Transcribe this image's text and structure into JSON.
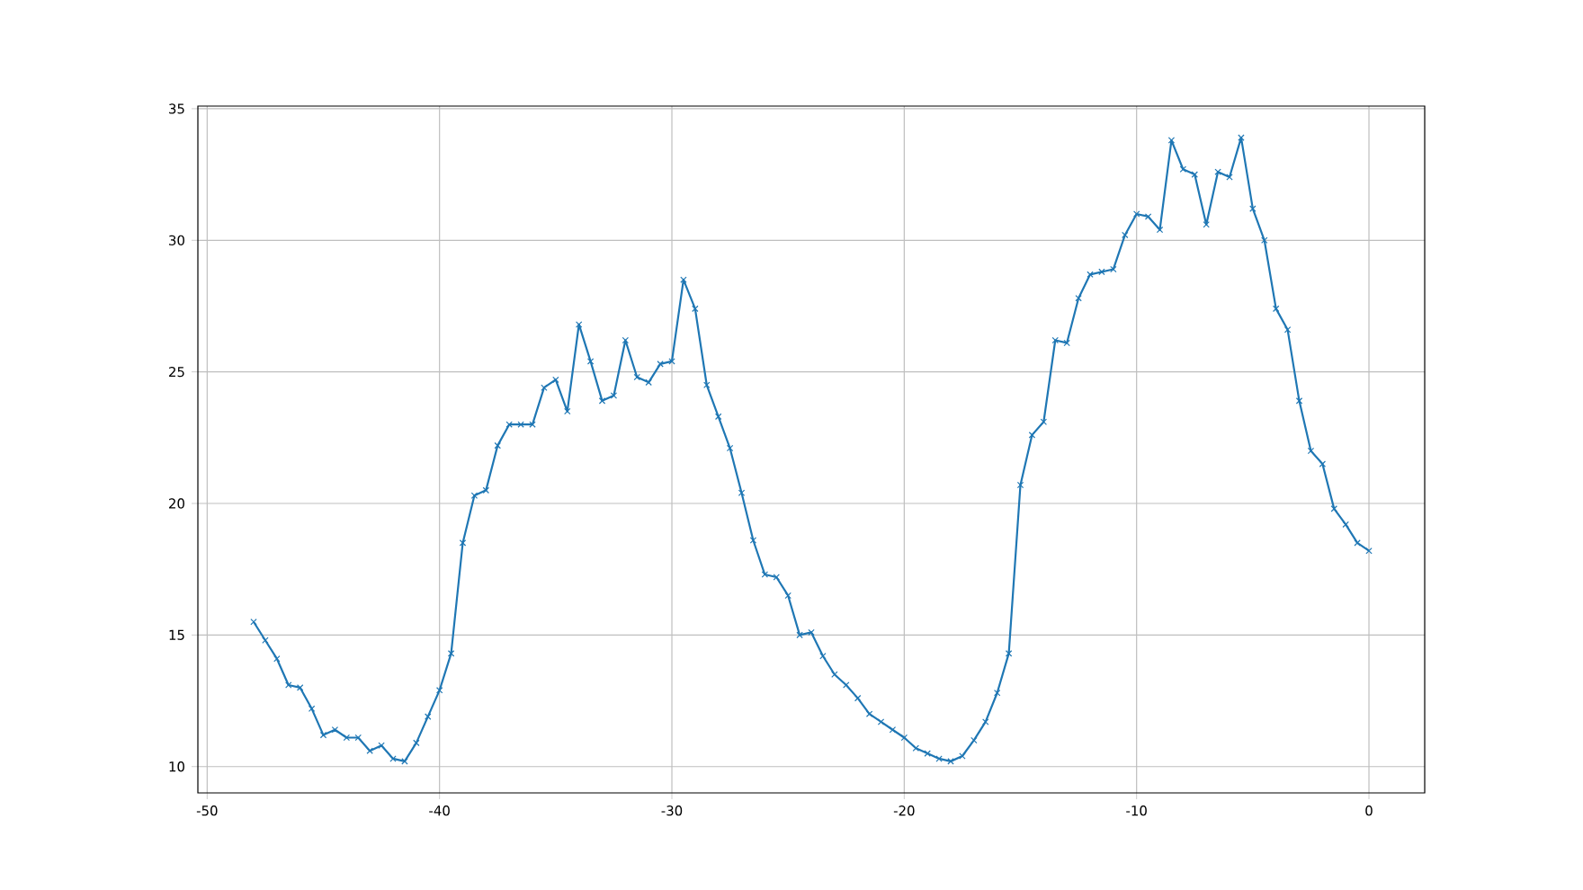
{
  "chart_data": {
    "type": "line",
    "marker": "cross",
    "line_style": "solid",
    "grid": true,
    "xlim": [
      -50.4,
      2.4
    ],
    "ylim": [
      9.0,
      35.1
    ],
    "xticks": [
      -50,
      -40,
      -30,
      -20,
      -10,
      0
    ],
    "yticks": [
      10,
      15,
      20,
      25,
      30,
      35
    ],
    "x": [
      -48,
      -47.5,
      -47,
      -46.5,
      -46,
      -45.5,
      -45,
      -44.5,
      -44,
      -43.5,
      -43,
      -42.5,
      -42,
      -41.5,
      -41,
      -40.5,
      -40,
      -39.5,
      -39,
      -38.5,
      -38,
      -37.5,
      -37,
      -36.5,
      -36,
      -35.5,
      -35,
      -34.5,
      -34,
      -33.5,
      -33,
      -32.5,
      -32,
      -31.5,
      -31,
      -30.5,
      -30,
      -29.5,
      -29,
      -28.5,
      -28,
      -27.5,
      -27,
      -26.5,
      -26,
      -25.5,
      -25,
      -24.5,
      -24,
      -23.5,
      -23,
      -22.5,
      -22,
      -21.5,
      -21,
      -20.5,
      -20,
      -19.5,
      -19,
      -18.5,
      -18,
      -17.5,
      -17,
      -16.5,
      -16,
      -15.5,
      -15,
      -14.5,
      -14,
      -13.5,
      -13,
      -12.5,
      -12,
      -11.5,
      -11,
      -10.5,
      -10,
      -9.5,
      -9,
      -8.5,
      -8,
      -7.5,
      -7,
      -6.5,
      -6,
      -5.5,
      -5,
      -4.5,
      -4,
      -3.5,
      -3,
      -2.5,
      -2,
      -1.5,
      -1,
      -0.5,
      0
    ],
    "series": [
      {
        "color": "#1f77b4",
        "values": [
          15.5,
          14.8,
          14.1,
          13.1,
          13.0,
          12.2,
          11.2,
          11.4,
          11.1,
          11.1,
          10.6,
          10.8,
          10.3,
          10.2,
          10.9,
          11.9,
          12.9,
          14.3,
          18.5,
          20.3,
          20.5,
          22.2,
          23.0,
          23.0,
          23.0,
          24.4,
          24.7,
          23.5,
          26.8,
          25.4,
          23.9,
          24.1,
          26.2,
          24.8,
          24.6,
          25.3,
          25.4,
          28.5,
          27.4,
          24.5,
          23.3,
          22.1,
          20.4,
          18.6,
          17.3,
          17.2,
          16.5,
          15.0,
          15.1,
          14.2,
          13.5,
          13.1,
          12.6,
          12.0,
          11.7,
          11.4,
          11.1,
          10.7,
          10.5,
          10.3,
          10.2,
          10.4,
          11.0,
          11.7,
          12.8,
          14.3,
          20.7,
          22.6,
          23.1,
          26.2,
          26.1,
          27.8,
          28.7,
          28.8,
          28.9,
          30.2,
          31.0,
          30.9,
          30.4,
          33.8,
          32.7,
          32.5,
          30.6,
          32.6,
          32.4,
          33.9,
          31.2,
          30.0,
          27.4,
          26.6,
          23.9,
          22.0,
          21.5,
          19.8,
          19.2,
          18.5,
          18.2
        ]
      }
    ]
  }
}
